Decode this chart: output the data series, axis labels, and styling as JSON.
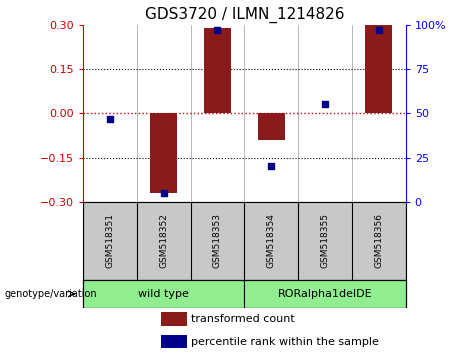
{
  "title": "GDS3720 / ILMN_1214826",
  "samples": [
    "GSM518351",
    "GSM518352",
    "GSM518353",
    "GSM518354",
    "GSM518355",
    "GSM518356"
  ],
  "transformed_count": [
    0.0,
    -0.27,
    0.29,
    -0.09,
    0.0,
    0.3
  ],
  "percentile_rank": [
    47,
    5,
    97,
    20,
    55,
    97
  ],
  "bar_color": "#8B1A1A",
  "dot_color": "#00008B",
  "ylim_left": [
    -0.3,
    0.3
  ],
  "ylim_right": [
    0,
    100
  ],
  "yticks_left": [
    -0.3,
    -0.15,
    0,
    0.15,
    0.3
  ],
  "yticks_right": [
    0,
    25,
    50,
    75,
    100
  ],
  "yticklabels_right": [
    "0",
    "25",
    "50",
    "75",
    "100%"
  ],
  "hlines": [
    0.15,
    -0.15
  ],
  "zero_line_color": "#CC0000",
  "group1_label": "wild type",
  "group2_label": "RORalpha1delDE",
  "group1_indices": [
    0,
    1,
    2
  ],
  "group2_indices": [
    3,
    4,
    5
  ],
  "xlabel_left": "genotype/variation",
  "legend_red": "transformed count",
  "legend_blue": "percentile rank within the sample",
  "bar_width": 0.5,
  "plot_bg_color": "#FFFFFF",
  "label_area_color": "#C8C8C8",
  "group_area_color": "#90EE90",
  "title_fontsize": 11,
  "tick_fontsize": 8,
  "legend_fontsize": 8
}
